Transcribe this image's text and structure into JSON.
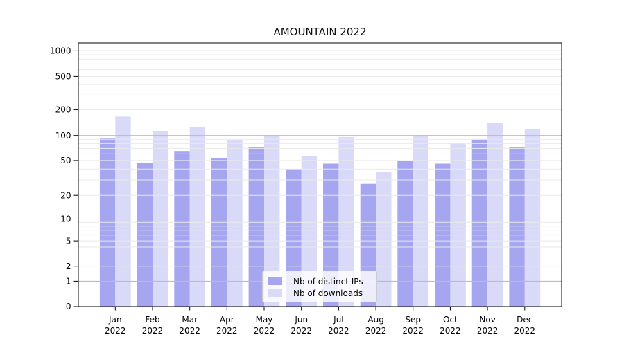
{
  "page": {
    "background": "#ffffff"
  },
  "chart_data": {
    "type": "bar",
    "title": "AMOUNTAIN 2022",
    "categories": [
      "Jan",
      "Feb",
      "Mar",
      "Apr",
      "May",
      "Jun",
      "Jul",
      "Aug",
      "Sep",
      "Oct",
      "Nov",
      "Dec"
    ],
    "year_label": "2022",
    "series": [
      {
        "name": "Nb of distinct IPs",
        "color": "#a5a5f0",
        "values": [
          92,
          47,
          65,
          53,
          73,
          40,
          46,
          27,
          50,
          46,
          89,
          73
        ]
      },
      {
        "name": "Nb of downloads",
        "color": "#d9d9f8",
        "values": [
          166,
          113,
          127,
          87,
          101,
          56,
          96,
          37,
          101,
          80,
          139,
          118
        ]
      }
    ],
    "xlabel": "",
    "ylabel": "",
    "yscale": "log-like (compressed below 10, linear 0 to 1)",
    "ylim": [
      0,
      1100
    ],
    "ytick_values": [
      0,
      1,
      2,
      5,
      10,
      20,
      50,
      100,
      200,
      500,
      1000
    ],
    "ytick_labels": [
      "0",
      "1",
      "2",
      "5",
      "10",
      "20",
      "50",
      "100",
      "200",
      "500",
      "1000"
    ],
    "major_gridlines": [
      1,
      10,
      100,
      1000
    ],
    "minor_gridlines": [
      2,
      3,
      4,
      5,
      6,
      7,
      8,
      9,
      20,
      30,
      40,
      50,
      60,
      70,
      80,
      90,
      200,
      300,
      400,
      500,
      600,
      700,
      800,
      900
    ],
    "scale_anchors": [
      [
        0,
        0
      ],
      [
        1,
        0.096
      ],
      [
        2,
        0.153
      ],
      [
        5,
        0.249
      ],
      [
        10,
        0.332
      ],
      [
        20,
        0.422
      ],
      [
        50,
        0.554
      ],
      [
        100,
        0.649
      ],
      [
        200,
        0.747
      ],
      [
        500,
        0.873
      ],
      [
        1000,
        0.97
      ]
    ],
    "grid": "on",
    "legend": {
      "position": "lower center"
    }
  },
  "colors": {
    "major_grid": "#bdbdbd",
    "minor_grid": "#e9e9e9",
    "axis_frame": "#000000",
    "tick_text": "#000000",
    "legend_border": "#cccccc",
    "legend_background": "rgba(255,255,255,0.8)"
  }
}
